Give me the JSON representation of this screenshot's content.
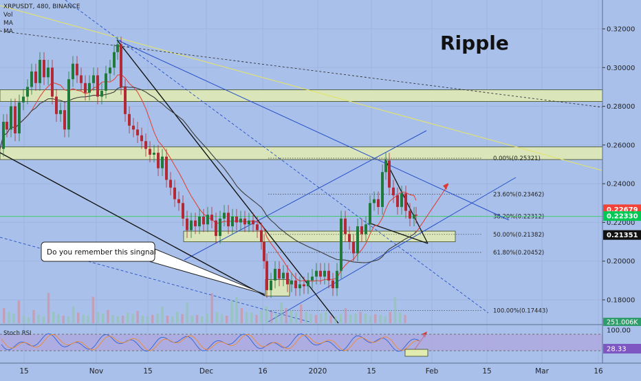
{
  "header": {
    "symbol_line": "XRPUSDT, 480, BINANCE",
    "indicators": [
      "Vol",
      "MA",
      "MA"
    ],
    "brand": "Ripple"
  },
  "annotation": {
    "text": "Do you remember this singnal"
  },
  "colors": {
    "background": "#a9c0ea",
    "bull_candle": "#1f7a3c",
    "bear_candle": "#b12a35",
    "zone_fill": "#e3ecb0",
    "fib_line": "#3a3a3a",
    "ma_fast": "#e0463c",
    "ma_slow": "#3b3b3b",
    "price_up_label": "#00c853",
    "price_down_label": "#f44336",
    "current_label": "#111111",
    "rsi_band": "#b39ddb"
  },
  "chart_data": {
    "type": "candlestick",
    "axis": {
      "y_price_ticks": [
        "0.32000",
        "0.30000",
        "0.28000",
        "0.26000",
        "0.24000",
        "0.22000",
        "0.20000",
        "0.18000"
      ],
      "y_price_values": [
        0.32,
        0.3,
        0.28,
        0.26,
        0.24,
        0.22,
        0.2,
        0.18
      ],
      "ylim": [
        0.168,
        0.332
      ],
      "x_ticks": [
        "15",
        "Nov",
        "15",
        "Dec",
        "16",
        "2020",
        "15",
        "Feb",
        "15",
        "Mar",
        "16"
      ]
    },
    "price_labels": [
      {
        "text": "0.22679",
        "value": 0.22679,
        "kind": "down"
      },
      {
        "text": "0.22330",
        "value": 0.2233,
        "kind": "up"
      },
      {
        "text": "0.21351",
        "value": 0.21351,
        "kind": "current"
      }
    ],
    "volume_label": "251.006K",
    "fib_levels": [
      {
        "label": "0.00%(0.25321)",
        "value": 0.25321
      },
      {
        "label": "23.60%(0.23462)",
        "value": 0.23462
      },
      {
        "label": "38.20%(0.22312)",
        "value": 0.22312
      },
      {
        "label": "50.00%(0.21382)",
        "value": 0.21382
      },
      {
        "label": "61.80%(0.20452)",
        "value": 0.20452
      },
      {
        "label": "100.00%(0.17443)",
        "value": 0.17443
      }
    ],
    "zones": [
      {
        "low": 0.2825,
        "high": 0.2885
      },
      {
        "low": 0.2525,
        "high": 0.259
      },
      {
        "low": 0.21,
        "high": 0.2155
      },
      {
        "low": 0.182,
        "high": 0.1905
      }
    ],
    "price_path": [
      [
        0,
        0.258
      ],
      [
        5,
        0.272
      ],
      [
        10,
        0.268
      ],
      [
        16,
        0.28
      ],
      [
        22,
        0.266
      ],
      [
        28,
        0.282
      ],
      [
        34,
        0.285
      ],
      [
        40,
        0.29
      ],
      [
        46,
        0.298
      ],
      [
        52,
        0.292
      ],
      [
        58,
        0.304
      ],
      [
        64,
        0.295
      ],
      [
        70,
        0.3
      ],
      [
        76,
        0.285
      ],
      [
        82,
        0.276
      ],
      [
        88,
        0.278
      ],
      [
        94,
        0.268
      ],
      [
        100,
        0.294
      ],
      [
        106,
        0.302
      ],
      [
        112,
        0.296
      ],
      [
        118,
        0.292
      ],
      [
        124,
        0.287
      ],
      [
        130,
        0.292
      ],
      [
        136,
        0.296
      ],
      [
        142,
        0.285
      ],
      [
        148,
        0.288
      ],
      [
        154,
        0.297
      ],
      [
        160,
        0.3
      ],
      [
        166,
        0.308
      ],
      [
        171,
        0.312
      ],
      [
        176,
        0.29
      ],
      [
        182,
        0.276
      ],
      [
        188,
        0.27
      ],
      [
        194,
        0.268
      ],
      [
        200,
        0.265
      ],
      [
        206,
        0.262
      ],
      [
        212,
        0.258
      ],
      [
        218,
        0.255
      ],
      [
        224,
        0.256
      ],
      [
        230,
        0.248
      ],
      [
        236,
        0.254
      ],
      [
        242,
        0.242
      ],
      [
        248,
        0.238
      ],
      [
        254,
        0.232
      ],
      [
        260,
        0.23
      ],
      [
        266,
        0.222
      ],
      [
        272,
        0.216
      ],
      [
        278,
        0.221
      ],
      [
        284,
        0.218
      ],
      [
        290,
        0.223
      ],
      [
        296,
        0.219
      ],
      [
        302,
        0.224
      ],
      [
        308,
        0.221
      ],
      [
        314,
        0.213
      ],
      [
        320,
        0.222
      ],
      [
        326,
        0.225
      ],
      [
        332,
        0.218
      ],
      [
        338,
        0.223
      ],
      [
        344,
        0.22
      ],
      [
        350,
        0.222
      ],
      [
        356,
        0.219
      ],
      [
        362,
        0.221
      ],
      [
        368,
        0.219
      ],
      [
        374,
        0.216
      ],
      [
        380,
        0.21
      ],
      [
        384,
        0.2
      ],
      [
        388,
        0.185
      ],
      [
        394,
        0.19
      ],
      [
        400,
        0.196
      ],
      [
        406,
        0.191
      ],
      [
        412,
        0.194
      ],
      [
        418,
        0.188
      ],
      [
        424,
        0.19
      ],
      [
        430,
        0.186
      ],
      [
        436,
        0.188
      ],
      [
        442,
        0.187
      ],
      [
        448,
        0.19
      ],
      [
        454,
        0.192
      ],
      [
        460,
        0.195
      ],
      [
        466,
        0.192
      ],
      [
        472,
        0.195
      ],
      [
        478,
        0.19
      ],
      [
        484,
        0.186
      ],
      [
        490,
        0.195
      ],
      [
        496,
        0.222
      ],
      [
        502,
        0.214
      ],
      [
        508,
        0.21
      ],
      [
        514,
        0.204
      ],
      [
        520,
        0.218
      ],
      [
        526,
        0.214
      ],
      [
        532,
        0.219
      ],
      [
        538,
        0.23
      ],
      [
        544,
        0.232
      ],
      [
        550,
        0.228
      ],
      [
        556,
        0.246
      ],
      [
        561,
        0.252
      ],
      [
        566,
        0.238
      ],
      [
        572,
        0.234
      ],
      [
        578,
        0.228
      ],
      [
        584,
        0.235
      ],
      [
        590,
        0.226
      ],
      [
        596,
        0.222
      ],
      [
        602,
        0.224
      ],
      [
        605,
        0.2235
      ]
    ],
    "volume_bars": [
      40,
      30,
      25,
      60,
      20,
      15,
      35,
      22,
      18,
      80,
      30,
      24,
      20,
      18,
      45,
      28,
      22,
      20,
      70,
      30,
      25,
      35,
      22,
      18,
      20,
      28,
      24,
      32,
      20,
      18,
      22,
      26,
      45,
      20,
      18,
      30,
      24,
      55,
      20,
      22,
      18,
      26,
      80,
      30,
      24,
      20,
      60,
      70,
      40,
      30,
      28,
      22,
      35,
      45,
      30,
      26,
      55,
      40,
      35,
      28,
      50,
      30,
      25,
      22,
      26,
      30,
      20,
      18,
      24,
      40,
      22,
      26,
      30,
      25,
      20,
      24,
      22,
      18,
      30,
      70,
      28,
      22
    ],
    "rsi": {
      "label": "Stoch RSI",
      "ticks": [
        "100.00",
        "28.33"
      ],
      "ylim": [
        0,
        100
      ]
    }
  }
}
